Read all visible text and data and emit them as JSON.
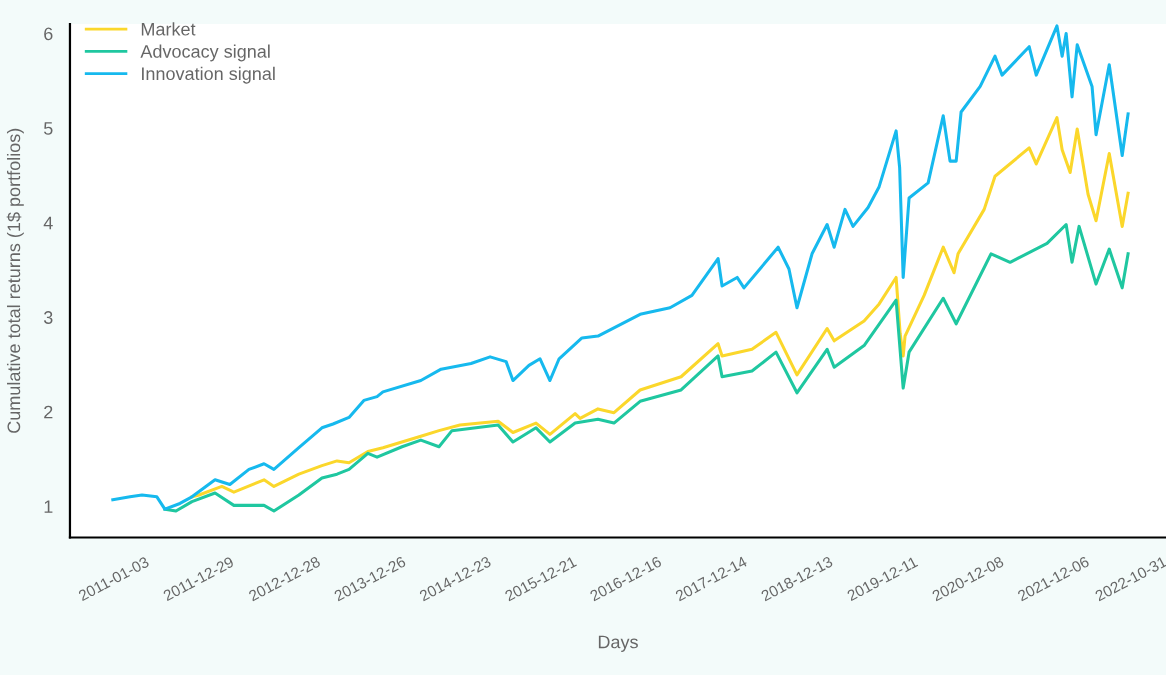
{
  "chart_data": {
    "type": "line",
    "xlabel": "Days",
    "ylabel": "Cumulative total returns (1$ portfolios)",
    "xlim": [
      "2010-07-13",
      "2023-04-10"
    ],
    "xticks": [
      "2011-01-03",
      "2011-12-29",
      "2012-12-28",
      "2013-12-26",
      "2014-12-23",
      "2015-12-21",
      "2016-12-16",
      "2017-12-14",
      "2018-12-13",
      "2019-12-11",
      "2020-12-08",
      "2021-12-06",
      "2022-10-31"
    ],
    "ylim": [
      0.67,
      6.1
    ],
    "yticks": [
      1,
      2,
      3,
      4,
      5,
      6
    ],
    "grid": false,
    "legend": "top left",
    "marker": "none",
    "line_style": "solid",
    "series": [
      {
        "name": "Market",
        "color": "#fbd72b",
        "x": [
          "2011-12-13",
          "2012-01-12",
          "2012-04-18",
          "2012-06-08",
          "2012-10-14",
          "2012-11-25",
          "2013-03-11",
          "2013-06-17",
          "2013-08-20",
          "2013-10-10",
          "2013-12-29",
          "2014-03-03",
          "2014-08-11",
          "2014-10-27",
          "2015-01-24",
          "2015-07-05",
          "2015-09-06",
          "2015-12-13",
          "2016-02-10",
          "2016-05-27",
          "2016-06-17",
          "2016-09-01",
          "2016-11-08",
          "2017-02-27",
          "2017-08-20",
          "2018-01-24",
          "2018-02-10",
          "2018-06-17",
          "2018-09-27",
          "2018-12-25",
          "2019-05-02",
          "2019-06-01",
          "2019-10-06",
          "2019-12-09",
          "2020-02-19",
          "2020-03-07",
          "2020-03-20",
          "2020-03-28",
          "2020-06-17",
          "2020-09-06",
          "2020-10-22",
          "2020-11-08",
          "2021-02-27",
          "2021-04-14",
          "2021-09-06",
          "2021-10-06",
          "2022-01-02",
          "2022-01-24",
          "2022-02-27",
          "2022-03-29",
          "2022-05-14",
          "2022-06-17",
          "2022-08-12",
          "2022-10-06",
          "2022-10-31"
        ],
        "values": [
          1.1,
          1.12,
          1.21,
          1.15,
          1.28,
          1.21,
          1.34,
          1.43,
          1.48,
          1.46,
          1.58,
          1.62,
          1.74,
          1.8,
          1.86,
          1.9,
          1.78,
          1.88,
          1.76,
          1.98,
          1.93,
          2.03,
          1.99,
          2.23,
          2.37,
          2.72,
          2.59,
          2.66,
          2.84,
          2.39,
          2.88,
          2.75,
          2.96,
          3.14,
          3.42,
          2.83,
          2.59,
          2.8,
          3.23,
          3.74,
          3.47,
          3.67,
          4.14,
          4.49,
          4.79,
          4.62,
          5.11,
          4.77,
          4.53,
          4.99,
          4.3,
          4.02,
          4.73,
          3.96,
          4.31
        ]
      },
      {
        "name": "Advocacy signal",
        "color": "#1fc7a0",
        "x": [
          "2011-08-20",
          "2011-10-06",
          "2011-12-13",
          "2012-03-20",
          "2012-06-08",
          "2012-10-14",
          "2012-11-25",
          "2013-03-11",
          "2013-06-17",
          "2013-08-20",
          "2013-10-10",
          "2013-12-29",
          "2014-02-06",
          "2014-05-23",
          "2014-08-11",
          "2014-10-27",
          "2014-12-21",
          "2015-07-05",
          "2015-09-06",
          "2015-12-13",
          "2016-02-10",
          "2016-05-27",
          "2016-09-01",
          "2016-11-08",
          "2017-02-27",
          "2017-08-20",
          "2018-01-24",
          "2018-02-10",
          "2018-06-17",
          "2018-09-27",
          "2018-12-25",
          "2019-05-02",
          "2019-06-01",
          "2019-10-06",
          "2020-02-19",
          "2020-03-20",
          "2020-04-14",
          "2020-09-06",
          "2020-10-31",
          "2021-03-28",
          "2021-06-17",
          "2021-11-21",
          "2022-02-10",
          "2022-03-07",
          "2022-04-06",
          "2022-06-17",
          "2022-08-12",
          "2022-10-06",
          "2022-10-31"
        ],
        "values": [
          0.97,
          0.95,
          1.05,
          1.14,
          1.01,
          1.01,
          0.95,
          1.12,
          1.3,
          1.34,
          1.39,
          1.56,
          1.52,
          1.63,
          1.7,
          1.63,
          1.8,
          1.86,
          1.68,
          1.83,
          1.68,
          1.88,
          1.92,
          1.88,
          2.11,
          2.23,
          2.59,
          2.37,
          2.43,
          2.63,
          2.2,
          2.66,
          2.47,
          2.7,
          3.18,
          2.25,
          2.63,
          3.2,
          2.93,
          3.67,
          3.58,
          3.78,
          3.98,
          3.58,
          3.96,
          3.35,
          3.72,
          3.31,
          3.67
        ]
      },
      {
        "name": "Innovation signal",
        "color": "#16b9ee",
        "x": [
          "2011-01-11",
          "2011-03-25",
          "2011-05-15",
          "2011-07-17",
          "2011-08-20",
          "2011-10-23",
          "2011-12-13",
          "2012-03-20",
          "2012-05-22",
          "2012-08-11",
          "2012-10-14",
          "2012-11-25",
          "2013-03-11",
          "2013-06-17",
          "2013-08-03",
          "2013-10-10",
          "2013-12-12",
          "2014-02-06",
          "2014-03-03",
          "2014-08-11",
          "2014-11-05",
          "2015-03-12",
          "2015-06-01",
          "2015-08-08",
          "2015-09-06",
          "2015-11-13",
          "2015-12-30",
          "2016-02-10",
          "2016-03-20",
          "2016-06-25",
          "2016-09-01",
          "2017-02-27",
          "2017-07-04",
          "2017-10-05",
          "2018-01-24",
          "2018-02-10",
          "2018-04-15",
          "2018-05-14",
          "2018-10-06",
          "2018-11-21",
          "2018-12-25",
          "2019-02-27",
          "2019-05-02",
          "2019-06-01",
          "2019-07-17",
          "2019-08-20",
          "2019-10-23",
          "2019-12-09",
          "2020-02-19",
          "2020-03-05",
          "2020-03-20",
          "2020-04-14",
          "2020-07-04",
          "2020-09-06",
          "2020-10-05",
          "2020-10-31",
          "2020-11-21",
          "2021-02-10",
          "2021-04-14",
          "2021-05-14",
          "2021-09-06",
          "2021-10-06",
          "2022-01-02",
          "2022-01-24",
          "2022-02-10",
          "2022-03-07",
          "2022-03-29",
          "2022-05-31",
          "2022-06-17",
          "2022-08-12",
          "2022-10-06",
          "2022-10-31"
        ],
        "values": [
          1.07,
          1.1,
          1.12,
          1.1,
          0.97,
          1.03,
          1.1,
          1.28,
          1.23,
          1.39,
          1.45,
          1.39,
          1.62,
          1.83,
          1.87,
          1.94,
          2.12,
          2.16,
          2.21,
          2.33,
          2.45,
          2.51,
          2.58,
          2.53,
          2.33,
          2.49,
          2.56,
          2.33,
          2.56,
          2.78,
          2.8,
          3.03,
          3.1,
          3.23,
          3.62,
          3.33,
          3.42,
          3.31,
          3.74,
          3.51,
          3.1,
          3.67,
          3.98,
          3.74,
          4.14,
          3.96,
          4.16,
          4.38,
          4.97,
          4.58,
          3.42,
          4.26,
          4.42,
          5.13,
          4.65,
          4.65,
          5.17,
          5.44,
          5.76,
          5.56,
          5.86,
          5.56,
          6.08,
          5.76,
          6.0,
          5.33,
          5.88,
          5.44,
          4.93,
          5.67,
          4.71,
          5.15
        ]
      }
    ]
  }
}
